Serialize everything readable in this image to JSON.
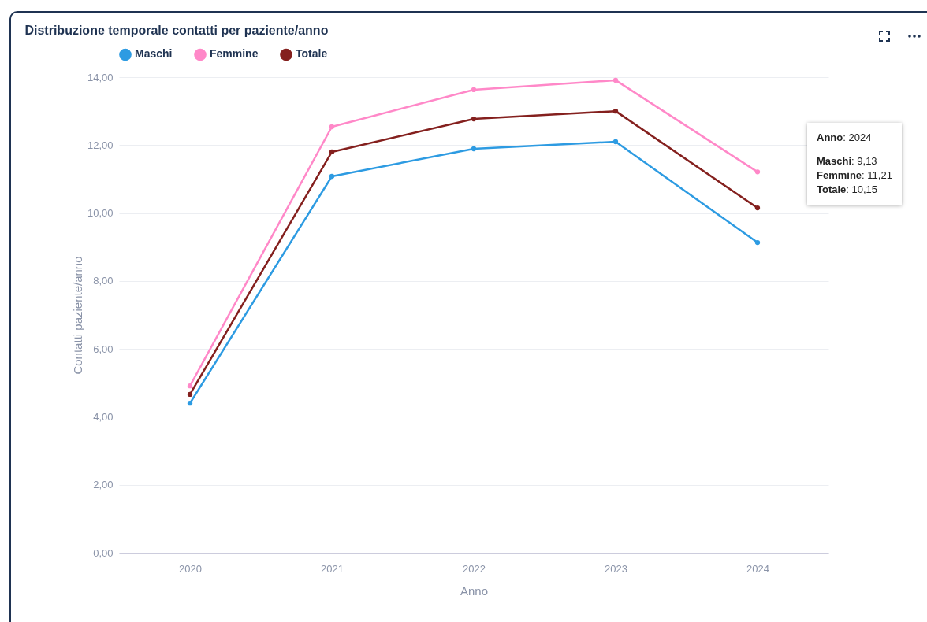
{
  "chart_data": {
    "type": "line",
    "title": "Distribuzione temporale contatti per paziente/anno",
    "xlabel": "Anno",
    "ylabel": "Contatti paziente/anno",
    "categories": [
      "2020",
      "2021",
      "2022",
      "2023",
      "2024"
    ],
    "series": [
      {
        "name": "Maschi",
        "color": "#2d9be2",
        "values": [
          4.4,
          11.08,
          11.89,
          12.1,
          9.13
        ]
      },
      {
        "name": "Femmine",
        "color": "#ff88c8",
        "values": [
          4.91,
          12.54,
          13.63,
          13.91,
          11.21
        ]
      },
      {
        "name": "Totale",
        "color": "#84201e",
        "values": [
          4.66,
          11.8,
          12.77,
          13.0,
          10.15
        ]
      }
    ],
    "ylim": [
      0,
      14
    ],
    "yticks": [
      {
        "value": 0,
        "label": "0,00"
      },
      {
        "value": 2,
        "label": "2,00"
      },
      {
        "value": 4,
        "label": "4,00"
      },
      {
        "value": 6,
        "label": "6,00"
      },
      {
        "value": 8,
        "label": "8,00"
      },
      {
        "value": 10,
        "label": "10,00"
      },
      {
        "value": 12,
        "label": "12,00"
      },
      {
        "value": 14,
        "label": "14,00"
      }
    ],
    "grid": "y",
    "legend": "top",
    "marker": "circle",
    "line_style": "solid",
    "annotations": [
      "Anno: 2024",
      "Maschi: 9,13",
      "Femmine: 11,21",
      "Totale: 10,15"
    ]
  }
}
